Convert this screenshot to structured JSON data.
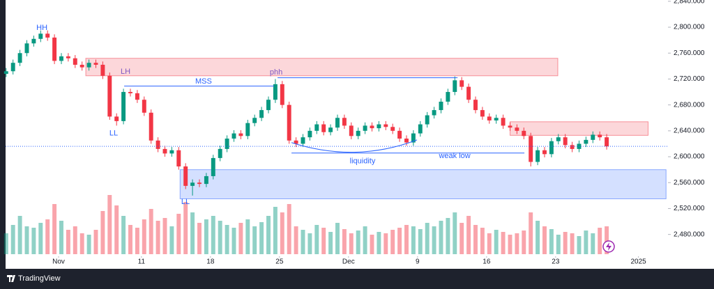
{
  "chart_data": {
    "type": "candlestick",
    "up_color": "#089981",
    "down_color": "#f23645",
    "xlim": [
      -3.84,
      44.14
    ],
    "ylim": [
      2428,
      2842
    ],
    "xticks": [
      {
        "value": 0,
        "label": "Nov"
      },
      {
        "value": 6,
        "label": "11"
      },
      {
        "value": 11,
        "label": "18"
      },
      {
        "value": 16,
        "label": "25"
      },
      {
        "value": 21,
        "label": "Dec"
      },
      {
        "value": 26,
        "label": "9"
      },
      {
        "value": 31,
        "label": "16"
      },
      {
        "value": 36,
        "label": "23"
      },
      {
        "value": 42,
        "label": "2025"
      }
    ],
    "yticks": [
      {
        "value": 2480,
        "label": "2,480.000"
      },
      {
        "value": 2520,
        "label": "2,520.000"
      },
      {
        "value": 2560,
        "label": "2,560.000"
      },
      {
        "value": 2600,
        "label": "2,600.000"
      },
      {
        "value": 2640,
        "label": "2,640.000"
      },
      {
        "value": 2680,
        "label": "2,680.000"
      },
      {
        "value": 2720,
        "label": "2,720.000"
      },
      {
        "value": 2760,
        "label": "2,760.000"
      },
      {
        "value": 2800,
        "label": "2,800.000"
      },
      {
        "value": 2840,
        "label": "2,840.000"
      }
    ],
    "candles": {
      "x": [
        -3.8,
        -3.3,
        -2.8,
        -2.3,
        -1.8,
        -1.3,
        -0.8,
        -0.3,
        0.2,
        0.7,
        1.2,
        1.7,
        2.2,
        2.7,
        3.2,
        3.7,
        4.2,
        4.7,
        5.2,
        5.7,
        6.2,
        6.7,
        7.2,
        7.7,
        8.2,
        8.7,
        9.2,
        9.7,
        10.2,
        10.7,
        11.2,
        11.7,
        12.2,
        12.7,
        13.2,
        13.7,
        14.2,
        14.7,
        15.2,
        15.7,
        16.2,
        16.7,
        17.2,
        17.7,
        18.2,
        18.7,
        19.2,
        19.7,
        20.2,
        20.7,
        21.2,
        21.7,
        22.2,
        22.7,
        23.2,
        23.7,
        24.2,
        24.7,
        25.2,
        25.7,
        26.2,
        26.7,
        27.2,
        27.7,
        28.2,
        28.7,
        29.2,
        29.7,
        30.2,
        30.7,
        31.2,
        31.7,
        32.2,
        32.7,
        33.2,
        33.7,
        34.2,
        34.7,
        35.2,
        35.7,
        36.2,
        36.7,
        37.2,
        37.7,
        38.2,
        38.7,
        39.2,
        39.7
      ],
      "open": [
        2728,
        2732,
        2745,
        2760,
        2775,
        2782,
        2790,
        2784,
        2748,
        2755,
        2752,
        2742,
        2738,
        2745,
        2742,
        2725,
        2662,
        2655,
        2700,
        2698,
        2688,
        2668,
        2625,
        2612,
        2605,
        2610,
        2585,
        2555,
        2560,
        2558,
        2570,
        2598,
        2612,
        2628,
        2636,
        2632,
        2652,
        2660,
        2672,
        2688,
        2712,
        2680,
        2625,
        2620,
        2630,
        2640,
        2650,
        2638,
        2645,
        2660,
        2648,
        2632,
        2640,
        2648,
        2644,
        2650,
        2646,
        2640,
        2628,
        2622,
        2636,
        2650,
        2664,
        2672,
        2685,
        2700,
        2718,
        2708,
        2688,
        2672,
        2662,
        2656,
        2660,
        2648,
        2645,
        2640,
        2632,
        2592,
        2610,
        2604,
        2624,
        2630,
        2618,
        2612,
        2620,
        2626,
        2634,
        2630
      ],
      "high": [
        2737,
        2750,
        2765,
        2780,
        2787,
        2795,
        2795,
        2789,
        2760,
        2760,
        2757,
        2747,
        2750,
        2750,
        2747,
        2730,
        2667,
        2705,
        2705,
        2703,
        2693,
        2673,
        2630,
        2617,
        2615,
        2615,
        2590,
        2565,
        2565,
        2575,
        2603,
        2617,
        2633,
        2641,
        2641,
        2657,
        2665,
        2677,
        2693,
        2720,
        2717,
        2685,
        2630,
        2635,
        2645,
        2655,
        2655,
        2650,
        2665,
        2665,
        2653,
        2645,
        2653,
        2653,
        2655,
        2655,
        2651,
        2645,
        2633,
        2641,
        2655,
        2669,
        2677,
        2690,
        2705,
        2724,
        2723,
        2713,
        2693,
        2677,
        2667,
        2665,
        2665,
        2653,
        2650,
        2645,
        2637,
        2615,
        2615,
        2629,
        2635,
        2635,
        2623,
        2625,
        2631,
        2639,
        2639,
        2635
      ],
      "low": [
        2723,
        2727,
        2740,
        2755,
        2770,
        2777,
        2779,
        2743,
        2743,
        2747,
        2737,
        2733,
        2733,
        2737,
        2720,
        2657,
        2648,
        2650,
        2693,
        2683,
        2663,
        2620,
        2607,
        2600,
        2600,
        2580,
        2550,
        2540,
        2553,
        2553,
        2565,
        2593,
        2607,
        2623,
        2627,
        2627,
        2647,
        2655,
        2667,
        2683,
        2675,
        2620,
        2615,
        2615,
        2625,
        2635,
        2633,
        2633,
        2640,
        2643,
        2627,
        2627,
        2635,
        2639,
        2639,
        2641,
        2635,
        2623,
        2617,
        2617,
        2631,
        2645,
        2659,
        2667,
        2680,
        2695,
        2703,
        2683,
        2667,
        2657,
        2651,
        2651,
        2643,
        2640,
        2635,
        2627,
        2585,
        2587,
        2599,
        2599,
        2619,
        2613,
        2607,
        2607,
        2615,
        2621,
        2625,
        2611
      ],
      "close": [
        2732,
        2745,
        2760,
        2775,
        2782,
        2790,
        2784,
        2748,
        2755,
        2752,
        2742,
        2738,
        2745,
        2742,
        2725,
        2662,
        2655,
        2700,
        2698,
        2688,
        2668,
        2625,
        2612,
        2605,
        2610,
        2585,
        2555,
        2560,
        2558,
        2570,
        2598,
        2612,
        2628,
        2636,
        2632,
        2652,
        2660,
        2672,
        2688,
        2712,
        2680,
        2625,
        2620,
        2630,
        2640,
        2650,
        2638,
        2645,
        2660,
        2648,
        2632,
        2640,
        2648,
        2644,
        2650,
        2646,
        2640,
        2628,
        2622,
        2636,
        2650,
        2664,
        2672,
        2685,
        2700,
        2718,
        2708,
        2688,
        2672,
        2662,
        2656,
        2660,
        2648,
        2645,
        2640,
        2632,
        2592,
        2610,
        2604,
        2624,
        2630,
        2618,
        2612,
        2620,
        2626,
        2634,
        2630,
        2616
      ],
      "volume": [
        30,
        42,
        55,
        40,
        38,
        45,
        50,
        72,
        48,
        35,
        40,
        30,
        28,
        35,
        62,
        85,
        70,
        55,
        42,
        38,
        50,
        65,
        48,
        52,
        40,
        58,
        75,
        60,
        45,
        50,
        55,
        48,
        42,
        38,
        45,
        50,
        40,
        46,
        55,
        68,
        60,
        72,
        40,
        35,
        30,
        42,
        38,
        32,
        45,
        36,
        30,
        34,
        40,
        28,
        32,
        30,
        35,
        38,
        42,
        40,
        36,
        45,
        40,
        48,
        52,
        60,
        45,
        55,
        42,
        38,
        30,
        35,
        32,
        28,
        30,
        34,
        60,
        48,
        40,
        36,
        28,
        32,
        30,
        26,
        34,
        30,
        38,
        40
      ]
    },
    "zones": [
      {
        "x": [
          1.97,
          36.16
        ],
        "y": [
          2725,
          2752
        ],
        "color": "#f23645"
      },
      {
        "x": [
          32.7,
          42.7
        ],
        "y": [
          2633,
          2654
        ],
        "color": "#f23645"
      },
      {
        "x": [
          8.8,
          44.0
        ],
        "y": [
          2535,
          2580
        ],
        "color": "#2962ff"
      }
    ],
    "lines": [
      {
        "x": [
          4.75,
          15.6
        ],
        "y": [
          2709,
          2709
        ]
      },
      {
        "x": [
          15.86,
          28.9
        ],
        "y": [
          2722,
          2722
        ]
      },
      {
        "x": [
          16.87,
          33.74
        ],
        "y": [
          2605.7,
          2605.7
        ]
      }
    ],
    "curve": {
      "x": [
        16.87,
        21.5,
        25.96
      ],
      "y": [
        2621.8,
        2590,
        2626
      ]
    },
    "annotations": [
      {
        "text": "HH",
        "x": -1.21,
        "y": 2799,
        "color": "#2962ff"
      },
      {
        "text": "LH",
        "x": 4.85,
        "y": 2731,
        "color": "#7e57c2"
      },
      {
        "text": "LL",
        "x": 3.99,
        "y": 2636,
        "color": "#2962ff"
      },
      {
        "text": "MSS",
        "x": 10.5,
        "y": 2716,
        "color": "#2962ff"
      },
      {
        "text": "phh",
        "x": 15.76,
        "y": 2730,
        "color": "#7e57c2"
      },
      {
        "text": "LL",
        "x": 9.19,
        "y": 2530,
        "color": "#2962ff"
      },
      {
        "text": "liquidity",
        "x": 22.02,
        "y": 2593,
        "color": "#2962ff"
      },
      {
        "text": "weak low",
        "x": 28.69,
        "y": 2601,
        "color": "#2962ff"
      }
    ],
    "footer": "TradingView"
  }
}
